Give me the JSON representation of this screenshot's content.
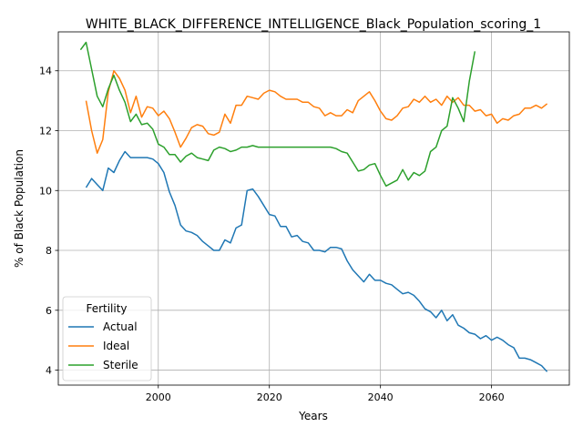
{
  "chart_data": {
    "type": "line",
    "title": "WHITE_BLACK_DIFFERENCE_INTELLIGENCE_Black_Population_scoring_1",
    "xlabel": "Years",
    "ylabel": "% of Black Population",
    "xlim": [
      1982,
      2074
    ],
    "ylim": [
      3.5,
      15.3
    ],
    "xticks": [
      2000,
      2020,
      2040,
      2060
    ],
    "yticks": [
      4,
      6,
      8,
      10,
      12,
      14
    ],
    "grid": true,
    "legend": {
      "title": "Fertility",
      "placement": "lower-left"
    },
    "series": [
      {
        "name": "Actual",
        "color": "#1f77b4",
        "points": [
          [
            1987,
            10.1
          ],
          [
            1988,
            10.4
          ],
          [
            1989,
            10.2
          ],
          [
            1990,
            10.0
          ],
          [
            1991,
            10.75
          ],
          [
            1992,
            10.6
          ],
          [
            1993,
            11.0
          ],
          [
            1994,
            11.3
          ],
          [
            1995,
            11.1
          ],
          [
            1996,
            11.1
          ],
          [
            1997,
            11.1
          ],
          [
            1998,
            11.1
          ],
          [
            1999,
            11.05
          ],
          [
            2000,
            10.9
          ],
          [
            2001,
            10.6
          ],
          [
            2002,
            9.95
          ],
          [
            2003,
            9.5
          ],
          [
            2004,
            8.85
          ],
          [
            2005,
            8.65
          ],
          [
            2006,
            8.6
          ],
          [
            2007,
            8.5
          ],
          [
            2008,
            8.3
          ],
          [
            2009,
            8.15
          ],
          [
            2010,
            8.0
          ],
          [
            2011,
            8.0
          ],
          [
            2012,
            8.35
          ],
          [
            2013,
            8.25
          ],
          [
            2014,
            8.75
          ],
          [
            2015,
            8.85
          ],
          [
            2016,
            10.0
          ],
          [
            2017,
            10.05
          ],
          [
            2018,
            9.8
          ],
          [
            2019,
            9.5
          ],
          [
            2020,
            9.2
          ],
          [
            2021,
            9.15
          ],
          [
            2022,
            8.8
          ],
          [
            2023,
            8.8
          ],
          [
            2024,
            8.45
          ],
          [
            2025,
            8.5
          ],
          [
            2026,
            8.3
          ],
          [
            2027,
            8.25
          ],
          [
            2028,
            8.0
          ],
          [
            2029,
            8.0
          ],
          [
            2030,
            7.95
          ],
          [
            2031,
            8.1
          ],
          [
            2032,
            8.1
          ],
          [
            2033,
            8.05
          ],
          [
            2034,
            7.65
          ],
          [
            2035,
            7.35
          ],
          [
            2036,
            7.15
          ],
          [
            2037,
            6.95
          ],
          [
            2038,
            7.2
          ],
          [
            2039,
            7.0
          ],
          [
            2040,
            7.0
          ],
          [
            2041,
            6.9
          ],
          [
            2042,
            6.85
          ],
          [
            2043,
            6.7
          ],
          [
            2044,
            6.55
          ],
          [
            2045,
            6.6
          ],
          [
            2046,
            6.5
          ],
          [
            2047,
            6.3
          ],
          [
            2048,
            6.05
          ],
          [
            2049,
            5.95
          ],
          [
            2050,
            5.75
          ],
          [
            2051,
            6.0
          ],
          [
            2052,
            5.65
          ],
          [
            2053,
            5.85
          ],
          [
            2054,
            5.5
          ],
          [
            2055,
            5.4
          ],
          [
            2056,
            5.25
          ],
          [
            2057,
            5.2
          ],
          [
            2058,
            5.05
          ],
          [
            2059,
            5.15
          ],
          [
            2060,
            5.0
          ],
          [
            2061,
            5.1
          ],
          [
            2062,
            5.0
          ],
          [
            2063,
            4.85
          ],
          [
            2064,
            4.75
          ],
          [
            2065,
            4.4
          ],
          [
            2066,
            4.4
          ],
          [
            2067,
            4.35
          ],
          [
            2068,
            4.25
          ],
          [
            2069,
            4.15
          ],
          [
            2070,
            3.95
          ]
        ]
      },
      {
        "name": "Ideal",
        "color": "#ff7f0e",
        "points": [
          [
            1987,
            13.0
          ],
          [
            1988,
            12.0
          ],
          [
            1989,
            11.25
          ],
          [
            1990,
            11.7
          ],
          [
            1991,
            13.3
          ],
          [
            1992,
            14.0
          ],
          [
            1993,
            13.75
          ],
          [
            1994,
            13.35
          ],
          [
            1995,
            12.6
          ],
          [
            1996,
            13.15
          ],
          [
            1997,
            12.45
          ],
          [
            1998,
            12.8
          ],
          [
            1999,
            12.75
          ],
          [
            2000,
            12.5
          ],
          [
            2001,
            12.65
          ],
          [
            2002,
            12.4
          ],
          [
            2003,
            11.95
          ],
          [
            2004,
            11.45
          ],
          [
            2005,
            11.75
          ],
          [
            2006,
            12.1
          ],
          [
            2007,
            12.2
          ],
          [
            2008,
            12.15
          ],
          [
            2009,
            11.9
          ],
          [
            2010,
            11.85
          ],
          [
            2011,
            11.95
          ],
          [
            2012,
            12.55
          ],
          [
            2013,
            12.25
          ],
          [
            2014,
            12.85
          ],
          [
            2015,
            12.85
          ],
          [
            2016,
            13.15
          ],
          [
            2017,
            13.1
          ],
          [
            2018,
            13.05
          ],
          [
            2019,
            13.25
          ],
          [
            2020,
            13.35
          ],
          [
            2021,
            13.3
          ],
          [
            2022,
            13.15
          ],
          [
            2023,
            13.05
          ],
          [
            2024,
            13.05
          ],
          [
            2025,
            13.05
          ],
          [
            2026,
            12.95
          ],
          [
            2027,
            12.95
          ],
          [
            2028,
            12.8
          ],
          [
            2029,
            12.75
          ],
          [
            2030,
            12.5
          ],
          [
            2031,
            12.6
          ],
          [
            2032,
            12.5
          ],
          [
            2033,
            12.5
          ],
          [
            2034,
            12.7
          ],
          [
            2035,
            12.6
          ],
          [
            2036,
            13.0
          ],
          [
            2037,
            13.15
          ],
          [
            2038,
            13.3
          ],
          [
            2039,
            13.0
          ],
          [
            2040,
            12.65
          ],
          [
            2041,
            12.4
          ],
          [
            2042,
            12.35
          ],
          [
            2043,
            12.5
          ],
          [
            2044,
            12.75
          ],
          [
            2045,
            12.8
          ],
          [
            2046,
            13.05
          ],
          [
            2047,
            12.95
          ],
          [
            2048,
            13.15
          ],
          [
            2049,
            12.95
          ],
          [
            2050,
            13.05
          ],
          [
            2051,
            12.85
          ],
          [
            2052,
            13.15
          ],
          [
            2053,
            12.95
          ],
          [
            2054,
            13.1
          ],
          [
            2055,
            12.85
          ],
          [
            2056,
            12.85
          ],
          [
            2057,
            12.65
          ],
          [
            2058,
            12.7
          ],
          [
            2059,
            12.5
          ],
          [
            2060,
            12.55
          ],
          [
            2061,
            12.25
          ],
          [
            2062,
            12.4
          ],
          [
            2063,
            12.35
          ],
          [
            2064,
            12.5
          ],
          [
            2065,
            12.55
          ],
          [
            2066,
            12.75
          ],
          [
            2067,
            12.75
          ],
          [
            2068,
            12.85
          ],
          [
            2069,
            12.75
          ],
          [
            2070,
            12.9
          ]
        ]
      },
      {
        "name": "Sterile",
        "color": "#2ca02c",
        "points": [
          [
            1986,
            14.7
          ],
          [
            1987,
            14.95
          ],
          [
            1988,
            14.05
          ],
          [
            1989,
            13.15
          ],
          [
            1990,
            12.8
          ],
          [
            1991,
            13.4
          ],
          [
            1992,
            13.85
          ],
          [
            1993,
            13.35
          ],
          [
            1994,
            12.95
          ],
          [
            1995,
            12.3
          ],
          [
            1996,
            12.55
          ],
          [
            1997,
            12.2
          ],
          [
            1998,
            12.25
          ],
          [
            1999,
            12.05
          ],
          [
            2000,
            11.55
          ],
          [
            2001,
            11.45
          ],
          [
            2002,
            11.2
          ],
          [
            2003,
            11.2
          ],
          [
            2004,
            10.95
          ],
          [
            2005,
            11.15
          ],
          [
            2006,
            11.25
          ],
          [
            2007,
            11.1
          ],
          [
            2008,
            11.05
          ],
          [
            2009,
            11.0
          ],
          [
            2010,
            11.35
          ],
          [
            2011,
            11.45
          ],
          [
            2012,
            11.4
          ],
          [
            2013,
            11.3
          ],
          [
            2014,
            11.35
          ],
          [
            2015,
            11.45
          ],
          [
            2016,
            11.45
          ],
          [
            2017,
            11.5
          ],
          [
            2018,
            11.45
          ],
          [
            2019,
            11.45
          ],
          [
            2020,
            11.45
          ],
          [
            2021,
            11.45
          ],
          [
            2022,
            11.45
          ],
          [
            2023,
            11.45
          ],
          [
            2024,
            11.45
          ],
          [
            2025,
            11.45
          ],
          [
            2026,
            11.45
          ],
          [
            2027,
            11.45
          ],
          [
            2028,
            11.45
          ],
          [
            2029,
            11.45
          ],
          [
            2030,
            11.45
          ],
          [
            2031,
            11.45
          ],
          [
            2032,
            11.4
          ],
          [
            2033,
            11.3
          ],
          [
            2034,
            11.25
          ],
          [
            2035,
            10.95
          ],
          [
            2036,
            10.65
          ],
          [
            2037,
            10.7
          ],
          [
            2038,
            10.85
          ],
          [
            2039,
            10.9
          ],
          [
            2040,
            10.5
          ],
          [
            2041,
            10.15
          ],
          [
            2042,
            10.25
          ],
          [
            2043,
            10.35
          ],
          [
            2044,
            10.7
          ],
          [
            2045,
            10.35
          ],
          [
            2046,
            10.6
          ],
          [
            2047,
            10.5
          ],
          [
            2048,
            10.65
          ],
          [
            2049,
            11.3
          ],
          [
            2050,
            11.45
          ],
          [
            2051,
            12.0
          ],
          [
            2052,
            12.15
          ],
          [
            2053,
            13.1
          ],
          [
            2054,
            12.75
          ],
          [
            2055,
            12.3
          ],
          [
            2056,
            13.65
          ],
          [
            2057,
            14.65
          ]
        ]
      }
    ]
  }
}
